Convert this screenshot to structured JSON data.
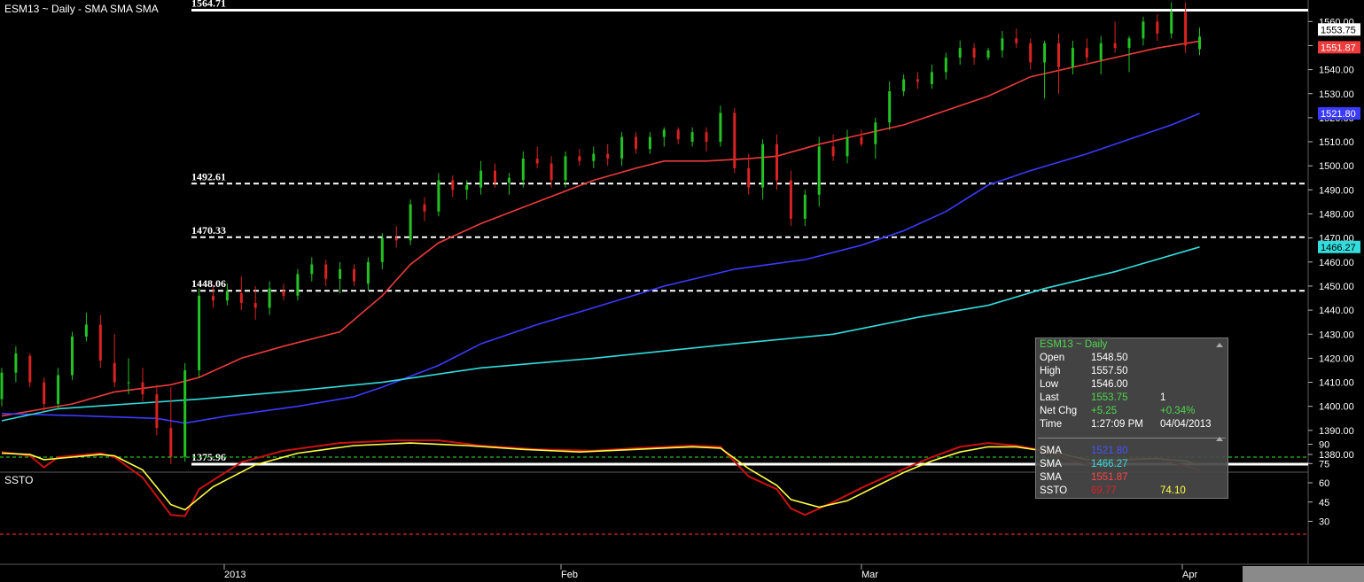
{
  "window": {
    "title": "ESM13 ~ Daily  -  SMA SMA SMA",
    "lower_pane_title": "SSTO"
  },
  "colors": {
    "up_candle": "#22c322",
    "down_candle": "#d92222",
    "sma_blue": "#3b3bff",
    "sma_cyan": "#33dddd",
    "sma_red": "#ee3b3b",
    "ssto_fast": "#cc1111",
    "ssto_slow": "#ffff44",
    "overbought_line": "#22bb22",
    "oversold_line": "#dd2222"
  },
  "levels": [
    {
      "label": "1564.71",
      "value": 1564.71,
      "style": "solid"
    },
    {
      "label": "1492.61",
      "value": 1492.61,
      "style": "dashed"
    },
    {
      "label": "1470.33",
      "value": 1470.33,
      "style": "dashed"
    },
    {
      "label": "1448.06",
      "value": 1448.06,
      "style": "dashed"
    },
    {
      "label": "1375.96",
      "value": 1375.96,
      "style": "solid"
    }
  ],
  "price_axis": {
    "ticks": [
      "1380.00",
      "1390.00",
      "1400.00",
      "1410.00",
      "1420.00",
      "1430.00",
      "1440.00",
      "1450.00",
      "1460.00",
      "1470.00",
      "1480.00",
      "1490.00",
      "1500.00",
      "1510.00",
      "1520.00",
      "1530.00",
      "1540.00",
      "1550.00",
      "1560.00"
    ],
    "badges": [
      {
        "label": "1553.75",
        "value": 1553.75,
        "bg": "#ffffff",
        "fg": "#000000"
      },
      {
        "label": "1551.87",
        "value": 1551.87,
        "bg": "#ee3b3b",
        "fg": "#ffffff"
      },
      {
        "label": "1521.80",
        "value": 1521.8,
        "bg": "#3b3bff",
        "fg": "#ffffff"
      },
      {
        "label": "1466.27",
        "value": 1466.27,
        "bg": "#33dddd",
        "fg": "#000000"
      }
    ]
  },
  "ssto_axis": {
    "ticks": [
      "90",
      "75",
      "60",
      "45",
      "30"
    ],
    "overbought": 80,
    "oversold": 20
  },
  "date_axis": [
    "2013",
    "Feb",
    "Mar",
    "Apr"
  ],
  "chart_data": {
    "type": "candlestick",
    "symbol": "ESM13",
    "interval": "Daily",
    "candles": [
      [
        1403,
        1416,
        1400,
        1414
      ],
      [
        1414,
        1425,
        1410,
        1422
      ],
      [
        1421,
        1422,
        1408,
        1410
      ],
      [
        1410,
        1412,
        1398,
        1401
      ],
      [
        1401,
        1416,
        1399,
        1413
      ],
      [
        1413,
        1431,
        1411,
        1429
      ],
      [
        1429,
        1439,
        1427,
        1434
      ],
      [
        1434,
        1438,
        1416,
        1419
      ],
      [
        1418,
        1430,
        1408,
        1410
      ],
      [
        1410,
        1420,
        1405,
        1410
      ],
      [
        1410,
        1416,
        1402,
        1405
      ],
      [
        1405,
        1409,
        1388,
        1391
      ],
      [
        1391,
        1408,
        1376,
        1379
      ],
      [
        1379,
        1418,
        1377,
        1415
      ],
      [
        1415,
        1449,
        1412,
        1446
      ],
      [
        1446,
        1450,
        1441,
        1444
      ],
      [
        1444,
        1451,
        1442,
        1448
      ],
      [
        1447,
        1454,
        1440,
        1443
      ],
      [
        1443,
        1450,
        1436,
        1441
      ],
      [
        1441,
        1452,
        1438,
        1449
      ],
      [
        1448,
        1451,
        1444,
        1446
      ],
      [
        1446,
        1457,
        1444,
        1455
      ],
      [
        1455,
        1462,
        1452,
        1459
      ],
      [
        1459,
        1461,
        1450,
        1453
      ],
      [
        1453,
        1460,
        1447,
        1457
      ],
      [
        1457,
        1459,
        1450,
        1452
      ],
      [
        1451,
        1462,
        1448,
        1460
      ],
      [
        1460,
        1472,
        1457,
        1470
      ],
      [
        1470,
        1475,
        1466,
        1469
      ],
      [
        1469,
        1486,
        1467,
        1484
      ],
      [
        1484,
        1487,
        1477,
        1481
      ],
      [
        1481,
        1497,
        1479,
        1494
      ],
      [
        1494,
        1496,
        1487,
        1490
      ],
      [
        1490,
        1494,
        1486,
        1492
      ],
      [
        1491,
        1502,
        1488,
        1498
      ],
      [
        1498,
        1501,
        1491,
        1493
      ],
      [
        1493,
        1497,
        1488,
        1495
      ],
      [
        1494,
        1506,
        1491,
        1503
      ],
      [
        1503,
        1508,
        1499,
        1501
      ],
      [
        1501,
        1504,
        1491,
        1494
      ],
      [
        1494,
        1506,
        1491,
        1504
      ],
      [
        1504,
        1507,
        1500,
        1502
      ],
      [
        1502,
        1508,
        1499,
        1505
      ],
      [
        1505,
        1509,
        1500,
        1503
      ],
      [
        1503,
        1514,
        1500,
        1512
      ],
      [
        1512,
        1514,
        1505,
        1507
      ],
      [
        1507,
        1514,
        1505,
        1512
      ],
      [
        1512,
        1516,
        1508,
        1515
      ],
      [
        1515,
        1516,
        1509,
        1511
      ],
      [
        1510,
        1516,
        1508,
        1514
      ],
      [
        1514,
        1516,
        1506,
        1510
      ],
      [
        1510,
        1525,
        1508,
        1522
      ],
      [
        1522,
        1524,
        1497,
        1499
      ],
      [
        1499,
        1505,
        1488,
        1491
      ],
      [
        1491,
        1511,
        1486,
        1509
      ],
      [
        1509,
        1513,
        1490,
        1494
      ],
      [
        1494,
        1498,
        1475,
        1478
      ],
      [
        1478,
        1490,
        1475,
        1488
      ],
      [
        1488,
        1512,
        1483,
        1508
      ],
      [
        1508,
        1513,
        1502,
        1504
      ],
      [
        1504,
        1515,
        1501,
        1512
      ],
      [
        1512,
        1515,
        1508,
        1509
      ],
      [
        1509,
        1520,
        1503,
        1518
      ],
      [
        1518,
        1535,
        1515,
        1531
      ],
      [
        1531,
        1538,
        1529,
        1536
      ],
      [
        1536,
        1539,
        1532,
        1535
      ],
      [
        1534,
        1542,
        1532,
        1539
      ],
      [
        1539,
        1547,
        1536,
        1545
      ],
      [
        1545,
        1552,
        1542,
        1549
      ],
      [
        1549,
        1551,
        1542,
        1545
      ],
      [
        1545,
        1549,
        1544,
        1548
      ],
      [
        1548,
        1556,
        1545,
        1553
      ],
      [
        1553,
        1557,
        1549,
        1551
      ],
      [
        1551,
        1553,
        1540,
        1543
      ],
      [
        1543,
        1552,
        1528,
        1551
      ],
      [
        1551,
        1555,
        1530,
        1541
      ],
      [
        1541,
        1552,
        1538,
        1549
      ],
      [
        1549,
        1553,
        1543,
        1545
      ],
      [
        1544,
        1554,
        1538,
        1551
      ],
      [
        1551,
        1560,
        1547,
        1549
      ],
      [
        1549,
        1554,
        1539,
        1553
      ],
      [
        1553,
        1562,
        1550,
        1560
      ],
      [
        1560,
        1563,
        1552,
        1555
      ],
      [
        1555,
        1568,
        1553,
        1564
      ],
      [
        1564,
        1568,
        1547,
        1550
      ],
      [
        1548.5,
        1557.5,
        1546,
        1553.75
      ]
    ],
    "series": [
      {
        "name": "SMA",
        "color": "#ee3b3b",
        "values": [
          [
            0,
            1396
          ],
          [
            5,
            1401
          ],
          [
            8,
            1406
          ],
          [
            12,
            1409
          ],
          [
            14,
            1412
          ],
          [
            17,
            1420
          ],
          [
            20,
            1425
          ],
          [
            24,
            1431
          ],
          [
            27,
            1446
          ],
          [
            29,
            1459
          ],
          [
            31,
            1468
          ],
          [
            34,
            1476
          ],
          [
            38,
            1485
          ],
          [
            42,
            1494
          ],
          [
            45,
            1499
          ],
          [
            47,
            1502
          ],
          [
            50,
            1502
          ],
          [
            53,
            1503
          ],
          [
            55,
            1504
          ],
          [
            58,
            1509
          ],
          [
            61,
            1513
          ],
          [
            64,
            1517
          ],
          [
            67,
            1523
          ],
          [
            70,
            1529
          ],
          [
            73,
            1537
          ],
          [
            76,
            1541
          ],
          [
            79,
            1545
          ],
          [
            82,
            1549
          ],
          [
            85,
            1551.87
          ]
        ]
      },
      {
        "name": "SMA",
        "color": "#3b3bff",
        "values": [
          [
            0,
            1397
          ],
          [
            6,
            1396
          ],
          [
            11,
            1395
          ],
          [
            13,
            1393
          ],
          [
            16,
            1396
          ],
          [
            21,
            1400
          ],
          [
            25,
            1404
          ],
          [
            27,
            1408
          ],
          [
            31,
            1417
          ],
          [
            34,
            1426
          ],
          [
            38,
            1434
          ],
          [
            42,
            1441
          ],
          [
            47,
            1450
          ],
          [
            52,
            1457
          ],
          [
            57,
            1461
          ],
          [
            61,
            1467
          ],
          [
            64,
            1473
          ],
          [
            67,
            1481
          ],
          [
            70,
            1492
          ],
          [
            73,
            1498
          ],
          [
            77,
            1505
          ],
          [
            80,
            1511
          ],
          [
            83,
            1517
          ],
          [
            85,
            1521.8
          ]
        ]
      },
      {
        "name": "SMA",
        "color": "#33dddd",
        "values": [
          [
            0,
            1394
          ],
          [
            4,
            1399
          ],
          [
            9,
            1401
          ],
          [
            14,
            1403
          ],
          [
            20,
            1406
          ],
          [
            27,
            1410
          ],
          [
            34,
            1416
          ],
          [
            42,
            1420
          ],
          [
            52,
            1426
          ],
          [
            59,
            1430
          ],
          [
            65,
            1437
          ],
          [
            70,
            1442
          ],
          [
            74,
            1449
          ],
          [
            79,
            1456
          ],
          [
            85,
            1466.27
          ]
        ]
      }
    ],
    "ssto": {
      "fast": [
        [
          0,
          84
        ],
        [
          2,
          81
        ],
        [
          3,
          72
        ],
        [
          4,
          80
        ],
        [
          6,
          82
        ],
        [
          7,
          83
        ],
        [
          8,
          80
        ],
        [
          10,
          64
        ],
        [
          12,
          35
        ],
        [
          13,
          34
        ],
        [
          14,
          55
        ],
        [
          17,
          76
        ],
        [
          20,
          85
        ],
        [
          24,
          91
        ],
        [
          28,
          93
        ],
        [
          31,
          93
        ],
        [
          34,
          89
        ],
        [
          38,
          86
        ],
        [
          42,
          85
        ],
        [
          45,
          87
        ],
        [
          49,
          89
        ],
        [
          51,
          88
        ],
        [
          53,
          65
        ],
        [
          55,
          55
        ],
        [
          56,
          40
        ],
        [
          57,
          35
        ],
        [
          59,
          45
        ],
        [
          61,
          56
        ],
        [
          63,
          66
        ],
        [
          66,
          80
        ],
        [
          68,
          88
        ],
        [
          70,
          91
        ],
        [
          72,
          89
        ],
        [
          74,
          85
        ],
        [
          76,
          77
        ],
        [
          78,
          72
        ],
        [
          80,
          79
        ],
        [
          82,
          79
        ],
        [
          84,
          73
        ],
        [
          85,
          69.77
        ]
      ],
      "slow": [
        [
          0,
          83
        ],
        [
          2,
          82
        ],
        [
          3,
          78
        ],
        [
          5,
          80
        ],
        [
          7,
          82
        ],
        [
          8,
          81
        ],
        [
          10,
          70
        ],
        [
          12,
          43
        ],
        [
          13,
          39
        ],
        [
          15,
          57
        ],
        [
          18,
          74
        ],
        [
          21,
          83
        ],
        [
          25,
          89
        ],
        [
          29,
          91
        ],
        [
          33,
          89
        ],
        [
          37,
          86
        ],
        [
          41,
          84
        ],
        [
          45,
          86
        ],
        [
          49,
          88
        ],
        [
          51,
          87
        ],
        [
          53,
          71
        ],
        [
          55,
          58
        ],
        [
          56,
          47
        ],
        [
          58,
          41
        ],
        [
          60,
          46
        ],
        [
          62,
          57
        ],
        [
          64,
          68
        ],
        [
          66,
          77
        ],
        [
          68,
          84
        ],
        [
          70,
          88
        ],
        [
          72,
          88
        ],
        [
          75,
          83
        ],
        [
          77,
          78
        ],
        [
          80,
          78
        ],
        [
          82,
          79
        ],
        [
          84,
          77
        ],
        [
          85,
          74.1
        ]
      ]
    }
  },
  "info_panel": {
    "title": "ESM13 ~ Daily",
    "rows": [
      {
        "label": "Open",
        "v1": "1548.50",
        "v1_color": "#ffffff",
        "v2": "",
        "v2_color": "#ffffff"
      },
      {
        "label": "High",
        "v1": "1557.50",
        "v1_color": "#ffffff",
        "v2": "",
        "v2_color": "#ffffff"
      },
      {
        "label": "Low",
        "v1": "1546.00",
        "v1_color": "#ffffff",
        "v2": "",
        "v2_color": "#ffffff"
      },
      {
        "label": "Last",
        "v1": "1553.75",
        "v1_color": "#4cd84c",
        "v2": "1",
        "v2_color": "#ffffff"
      },
      {
        "label": "Net Chg",
        "v1": "+5.25",
        "v1_color": "#4cd84c",
        "v2": "+0.34%",
        "v2_color": "#4cd84c"
      },
      {
        "label": "Time",
        "v1": "1:27:09 PM",
        "v1_color": "#ffffff",
        "v2": "04/04/2013",
        "v2_color": "#ffffff"
      }
    ],
    "study_rows": [
      {
        "label": "SMA",
        "v1": "1521.80",
        "v1_color": "#4455ff",
        "v2": "",
        "v2_color": "#ffffff"
      },
      {
        "label": "SMA",
        "v1": "1466.27",
        "v1_color": "#33dddd",
        "v2": "",
        "v2_color": "#ffffff"
      },
      {
        "label": "SMA",
        "v1": "1551.87",
        "v1_color": "#ff4444",
        "v2": "",
        "v2_color": "#ffffff"
      },
      {
        "label": "SSTO",
        "v1": "69.77",
        "v1_color": "#dd2222",
        "v2": "74.10",
        "v2_color": "#ffff44"
      }
    ]
  }
}
